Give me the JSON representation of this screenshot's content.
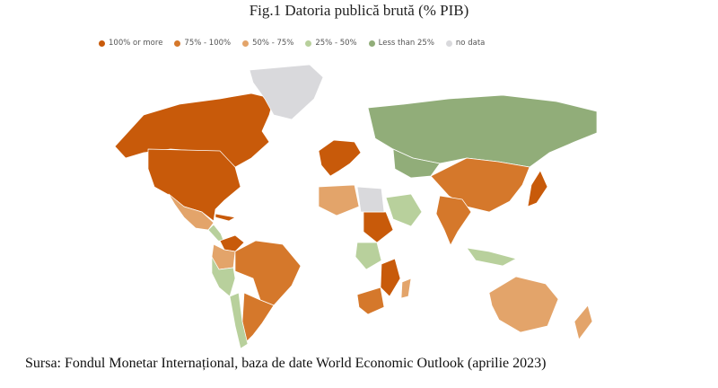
{
  "figure": {
    "title": "Fig.1 Datoria publică brută (% PIB)",
    "source": "Sursa: Fondul Monetar Internațional, baza de date World Economic Outlook (aprilie 2023)"
  },
  "legend": [
    {
      "label": "100% or more",
      "color": "#c85a0a"
    },
    {
      "label": "75% - 100%",
      "color": "#d5782b"
    },
    {
      "label": "50% - 75%",
      "color": "#e3a46a"
    },
    {
      "label": "25% - 50%",
      "color": "#b8d09c"
    },
    {
      "label": "Less than 25%",
      "color": "#91ad79"
    },
    {
      "label": "no data",
      "color": "#d9d9dc"
    }
  ],
  "regions": [
    {
      "name": "Canada",
      "category": "100% or more"
    },
    {
      "name": "United States",
      "category": "100% or more"
    },
    {
      "name": "Mexico",
      "category": "50% - 75%"
    },
    {
      "name": "Central America",
      "category": "25% - 50%"
    },
    {
      "name": "Cuba",
      "category": "100% or more"
    },
    {
      "name": "Greenland",
      "category": "no data"
    },
    {
      "name": "Venezuela",
      "category": "100% or more"
    },
    {
      "name": "Colombia",
      "category": "50% - 75%"
    },
    {
      "name": "Brazil",
      "category": "75% - 100%"
    },
    {
      "name": "Argentina",
      "category": "75% - 100%"
    },
    {
      "name": "Peru",
      "category": "25% - 50%"
    },
    {
      "name": "Chile",
      "category": "25% - 50%"
    },
    {
      "name": "Russia",
      "category": "Less than 25%"
    },
    {
      "name": "China",
      "category": "75% - 100%"
    },
    {
      "name": "India",
      "category": "75% - 100%"
    },
    {
      "name": "Japan",
      "category": "100% or more"
    },
    {
      "name": "Kazakhstan",
      "category": "Less than 25%"
    },
    {
      "name": "Saudi Arabia",
      "category": "25% - 50%"
    },
    {
      "name": "Western Europe",
      "category": "100% or more"
    },
    {
      "name": "Sudan",
      "category": "100% or more"
    },
    {
      "name": "Libya",
      "category": "no data"
    },
    {
      "name": "Algeria",
      "category": "50% - 75%"
    },
    {
      "name": "Congo",
      "category": "25% - 50%"
    },
    {
      "name": "Mozambique",
      "category": "100% or more"
    },
    {
      "name": "South Africa",
      "category": "75% - 100%"
    },
    {
      "name": "Madagascar",
      "category": "50% - 75%"
    },
    {
      "name": "Australia",
      "category": "50% - 75%"
    },
    {
      "name": "Indonesia",
      "category": "25% - 50%"
    },
    {
      "name": "New Zealand",
      "category": "50% - 75%"
    }
  ]
}
